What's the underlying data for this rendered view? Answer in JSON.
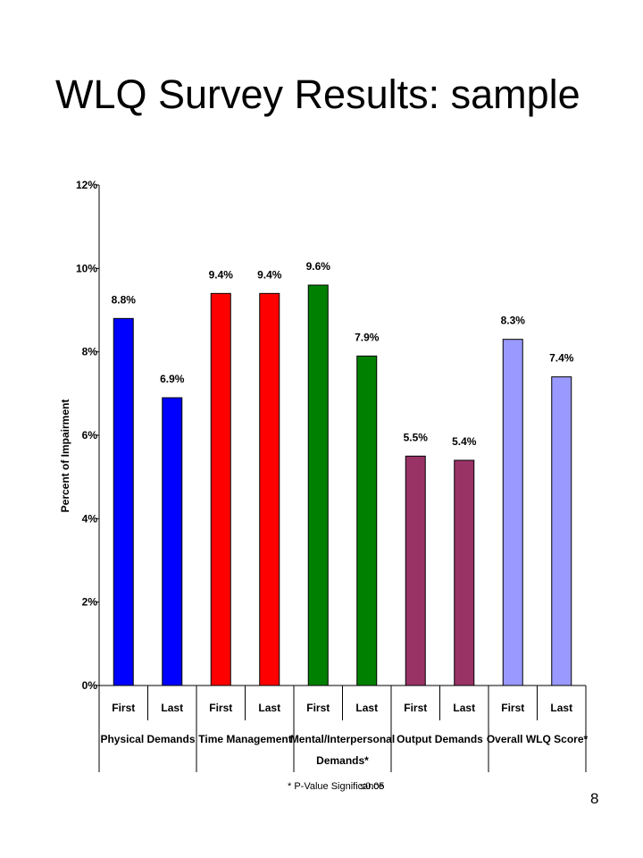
{
  "title": "WLQ Survey Results: sample",
  "footnote": {
    "left": "* P-Value Significance",
    "right": "≤0.05"
  },
  "page_number": "8",
  "chart_data": {
    "type": "bar",
    "ylabel": "Percent of Impairment",
    "xlabel": "",
    "ylim": [
      0,
      12
    ],
    "yticks": [
      "0%",
      "2%",
      "4%",
      "6%",
      "8%",
      "10%",
      "12%"
    ],
    "groups": [
      {
        "name": "Physical Demands",
        "color": "#0000ff",
        "bars": [
          {
            "label": "First",
            "value": 8.8,
            "text": "8.8%"
          },
          {
            "label": "Last",
            "value": 6.9,
            "text": "6.9%"
          }
        ]
      },
      {
        "name": "Time Management",
        "color": "#ff0000",
        "bars": [
          {
            "label": "First",
            "value": 9.4,
            "text": "9.4%"
          },
          {
            "label": "Last",
            "value": 9.4,
            "text": "9.4%"
          }
        ]
      },
      {
        "name": "Mental/Interpersonal Demands*",
        "name_lines": [
          "Mental/Interpersonal",
          "Demands*"
        ],
        "color": "#008000",
        "bars": [
          {
            "label": "First",
            "value": 9.6,
            "text": "9.6%"
          },
          {
            "label": "Last",
            "value": 7.9,
            "text": "7.9%"
          }
        ]
      },
      {
        "name": "Output Demands",
        "color": "#993366",
        "bars": [
          {
            "label": "First",
            "value": 5.5,
            "text": "5.5%"
          },
          {
            "label": "Last",
            "value": 5.4,
            "text": "5.4%"
          }
        ]
      },
      {
        "name": "Overall WLQ Score*",
        "color": "#9999ff",
        "bars": [
          {
            "label": "First",
            "value": 8.3,
            "text": "8.3%"
          },
          {
            "label": "Last",
            "value": 7.4,
            "text": "7.4%"
          }
        ]
      }
    ],
    "grid": false,
    "legend": "none"
  }
}
